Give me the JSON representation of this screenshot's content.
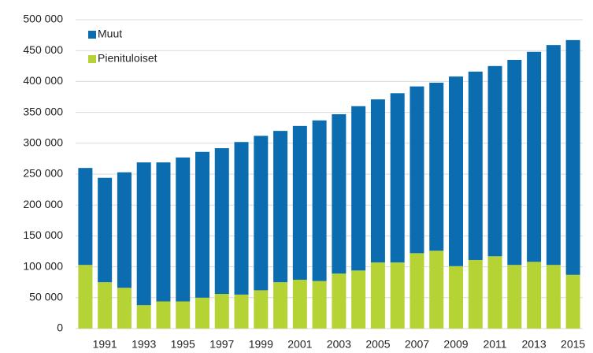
{
  "chart_data": {
    "type": "stacked_bar",
    "categories": [
      null,
      "1991",
      null,
      "1993",
      null,
      "1995",
      null,
      "1997",
      null,
      "1999",
      null,
      "2001",
      null,
      "2003",
      null,
      "2005",
      null,
      "2007",
      null,
      "2009",
      null,
      "2011",
      null,
      "2013",
      null,
      "2015"
    ],
    "series": [
      {
        "name": "Pienituloiset",
        "color": "#b5d334",
        "values": [
          103000,
          75000,
          66000,
          38000,
          44000,
          44000,
          50000,
          56000,
          55000,
          62000,
          75000,
          79000,
          77000,
          89000,
          94000,
          107000,
          107000,
          122000,
          126000,
          101000,
          111000,
          117000,
          103000,
          108000,
          103000,
          87000
        ]
      },
      {
        "name": "Muut",
        "color": "#0b6db0",
        "values": [
          157000,
          169000,
          187000,
          231000,
          225000,
          233000,
          236000,
          236000,
          247000,
          250000,
          245000,
          249000,
          260000,
          258000,
          266000,
          264000,
          274000,
          270000,
          272000,
          307000,
          305000,
          308000,
          332000,
          340000,
          356000,
          380000
        ]
      }
    ],
    "ylim": [
      0,
      500000
    ],
    "yticks": [
      0,
      {
        "value": 50000,
        "label": "50 000"
      },
      {
        "value": 100000,
        "label": "100 000"
      },
      {
        "value": 150000,
        "label": "150 000"
      },
      {
        "value": 200000,
        "label": "200 000"
      },
      {
        "value": 250000,
        "label": "250 000"
      },
      {
        "value": 300000,
        "label": "300 000"
      },
      {
        "value": 350000,
        "label": "350 000"
      },
      {
        "value": 400000,
        "label": "400 000"
      },
      {
        "value": 450000,
        "label": "450 000"
      },
      {
        "value": 500000,
        "label": "500 000"
      }
    ],
    "grid": true,
    "legend": "top-left"
  }
}
